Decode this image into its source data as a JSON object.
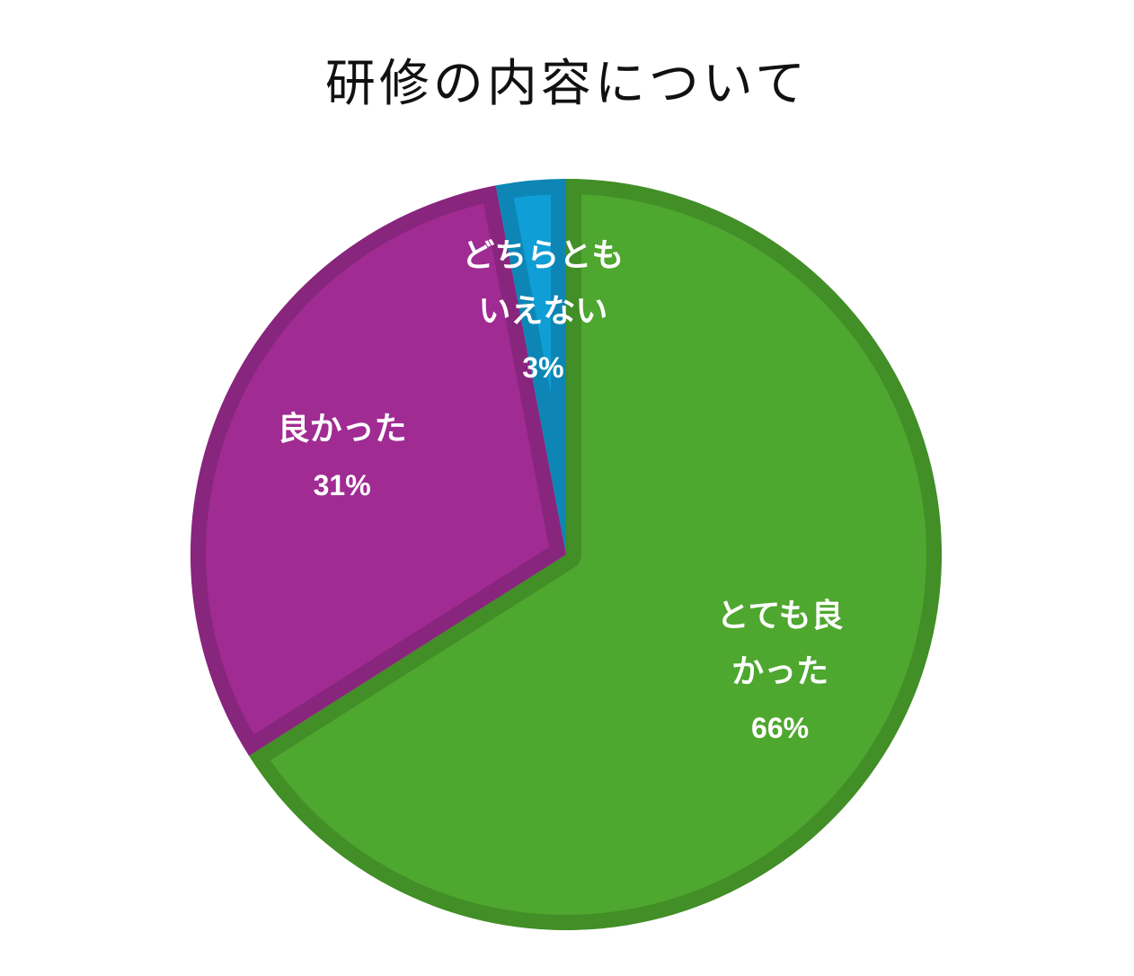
{
  "chart_data": {
    "type": "pie",
    "title": "研修の内容について",
    "categories": [
      "とても良かった",
      "良かった",
      "どちらともいえない"
    ],
    "values": [
      66,
      31,
      3
    ],
    "value_labels": [
      "66%",
      "31%",
      "3%"
    ],
    "colors": [
      "#4ea72e",
      "#a02b93",
      "#0f9ed5"
    ]
  }
}
